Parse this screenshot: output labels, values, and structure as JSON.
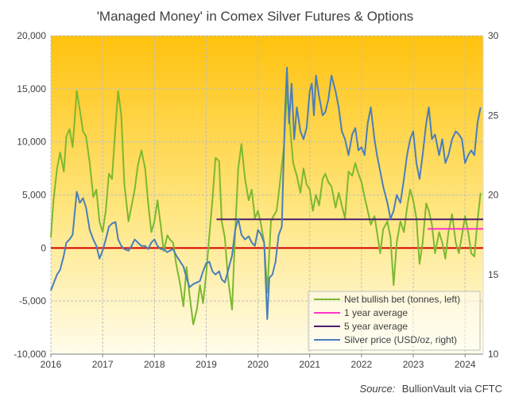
{
  "chart_data": {
    "type": "line",
    "title": "'Managed Money' in Comex Silver Futures & Options",
    "source_label": "Source:",
    "source_text": "BullionVault via CFTC",
    "x_ticks": [
      "2016",
      "2017",
      "2018",
      "2019",
      "2020",
      "2021",
      "2022",
      "2023",
      "2024"
    ],
    "x_range": [
      2016.0,
      2024.35
    ],
    "y_left": {
      "ticks": [
        "20,000",
        "15,000",
        "10,000",
        "5,000",
        "0",
        "-5,000",
        "-10,000"
      ],
      "range": [
        -10000,
        20000
      ]
    },
    "y_right": {
      "ticks": [
        "30",
        "25",
        "20",
        "15",
        "10"
      ],
      "range": [
        10,
        30
      ]
    },
    "grid": true,
    "legend_position": "bottom-right",
    "colors": {
      "net": "#7cb82f",
      "avg1": "#ff33cc",
      "avg5": "#4b1e6e",
      "price": "#4a7ebb",
      "zero": "#d40000",
      "grid": "#bfbfbf"
    },
    "series": [
      {
        "name": "Net bullish bet (tonnes, left)",
        "axis": "left",
        "x": [
          2016.0,
          2016.05,
          2016.12,
          2016.18,
          2016.25,
          2016.3,
          2016.36,
          2016.42,
          2016.5,
          2016.56,
          2016.62,
          2016.68,
          2016.75,
          2016.82,
          2016.88,
          2016.94,
          2017.0,
          2017.06,
          2017.12,
          2017.18,
          2017.25,
          2017.3,
          2017.36,
          2017.42,
          2017.5,
          2017.56,
          2017.62,
          2017.68,
          2017.75,
          2017.82,
          2017.88,
          2017.94,
          2018.0,
          2018.06,
          2018.12,
          2018.18,
          2018.25,
          2018.3,
          2018.36,
          2018.42,
          2018.5,
          2018.56,
          2018.62,
          2018.68,
          2018.75,
          2018.82,
          2018.88,
          2018.94,
          2019.0,
          2019.06,
          2019.12,
          2019.18,
          2019.25,
          2019.3,
          2019.36,
          2019.42,
          2019.5,
          2019.56,
          2019.62,
          2019.68,
          2019.75,
          2019.82,
          2019.88,
          2019.94,
          2020.0,
          2020.06,
          2020.12,
          2020.18,
          2020.25,
          2020.3,
          2020.36,
          2020.42,
          2020.5,
          2020.56,
          2020.62,
          2020.68,
          2020.75,
          2020.82,
          2020.88,
          2020.94,
          2021.0,
          2021.06,
          2021.12,
          2021.18,
          2021.25,
          2021.3,
          2021.36,
          2021.42,
          2021.5,
          2021.56,
          2021.62,
          2021.68,
          2021.75,
          2021.82,
          2021.88,
          2021.94,
          2022.0,
          2022.06,
          2022.12,
          2022.18,
          2022.25,
          2022.3,
          2022.36,
          2022.42,
          2022.5,
          2022.56,
          2022.62,
          2022.68,
          2022.75,
          2022.82,
          2022.88,
          2022.94,
          2023.0,
          2023.06,
          2023.12,
          2023.18,
          2023.25,
          2023.3,
          2023.36,
          2023.42,
          2023.5,
          2023.56,
          2023.62,
          2023.68,
          2023.75,
          2023.82,
          2023.88,
          2023.94,
          2024.0,
          2024.06,
          2024.12,
          2024.18,
          2024.24,
          2024.3
        ],
        "values": [
          1000,
          4500,
          7500,
          9000,
          7200,
          10500,
          11200,
          9500,
          14800,
          13000,
          11000,
          10500,
          8000,
          4800,
          5500,
          2500,
          1500,
          3500,
          7000,
          6500,
          11500,
          14800,
          12500,
          6000,
          2500,
          4000,
          5500,
          7800,
          9200,
          7500,
          4200,
          1500,
          2500,
          4500,
          2200,
          -300,
          1200,
          800,
          500,
          -1500,
          -3500,
          -5500,
          -1800,
          -4500,
          -7200,
          -5800,
          -3500,
          -5200,
          -2500,
          1200,
          4500,
          8500,
          8200,
          2500,
          1000,
          -2800,
          -5800,
          1500,
          7500,
          9800,
          6500,
          4500,
          5500,
          2800,
          3500,
          2200,
          500,
          -4200,
          2500,
          3000,
          3500,
          6000,
          9500,
          14800,
          11500,
          8000,
          6800,
          5200,
          7500,
          6000,
          5500,
          3500,
          5000,
          4000,
          6500,
          7000,
          6200,
          5800,
          3800,
          5200,
          4000,
          2800,
          7200,
          6800,
          8000,
          7000,
          6200,
          4800,
          3500,
          2200,
          3000,
          1500,
          -500,
          1800,
          2500,
          1000,
          -3500,
          500,
          2500,
          1500,
          3800,
          5500,
          4500,
          2800,
          -1500,
          500,
          4200,
          3500,
          2200,
          -500,
          1500,
          500,
          -1000,
          1500,
          3200,
          500,
          -500,
          1200,
          3000,
          1500,
          -500,
          -800,
          2500,
          5200
        ]
      },
      {
        "name": "1 year average",
        "axis": "left",
        "x": [
          2023.28,
          2024.35
        ],
        "values": [
          1800,
          1800
        ]
      },
      {
        "name": "5 year average",
        "axis": "left",
        "x": [
          2019.2,
          2024.35
        ],
        "values": [
          2700,
          2700
        ]
      },
      {
        "name": "Silver price (USD/oz, right)",
        "axis": "right",
        "x": [
          2016.0,
          2016.06,
          2016.12,
          2016.18,
          2016.25,
          2016.3,
          2016.36,
          2016.42,
          2016.5,
          2016.56,
          2016.62,
          2016.68,
          2016.75,
          2016.82,
          2016.88,
          2016.94,
          2017.0,
          2017.06,
          2017.12,
          2017.18,
          2017.25,
          2017.3,
          2017.36,
          2017.42,
          2017.5,
          2017.56,
          2017.62,
          2017.68,
          2017.75,
          2017.82,
          2017.88,
          2017.94,
          2018.0,
          2018.06,
          2018.12,
          2018.18,
          2018.25,
          2018.3,
          2018.36,
          2018.42,
          2018.5,
          2018.56,
          2018.62,
          2018.68,
          2018.75,
          2018.82,
          2018.88,
          2018.94,
          2019.0,
          2019.06,
          2019.12,
          2019.18,
          2019.25,
          2019.3,
          2019.36,
          2019.42,
          2019.5,
          2019.56,
          2019.62,
          2019.68,
          2019.75,
          2019.82,
          2019.88,
          2019.94,
          2020.0,
          2020.06,
          2020.12,
          2020.18,
          2020.22,
          2020.28,
          2020.34,
          2020.4,
          2020.46,
          2020.52,
          2020.56,
          2020.6,
          2020.65,
          2020.7,
          2020.75,
          2020.82,
          2020.88,
          2020.94,
          2021.0,
          2021.04,
          2021.08,
          2021.12,
          2021.18,
          2021.25,
          2021.3,
          2021.36,
          2021.42,
          2021.5,
          2021.56,
          2021.62,
          2021.68,
          2021.75,
          2021.82,
          2021.88,
          2021.94,
          2022.0,
          2022.06,
          2022.12,
          2022.18,
          2022.25,
          2022.3,
          2022.36,
          2022.42,
          2022.5,
          2022.56,
          2022.62,
          2022.68,
          2022.75,
          2022.82,
          2022.88,
          2022.94,
          2023.0,
          2023.06,
          2023.12,
          2023.18,
          2023.25,
          2023.3,
          2023.36,
          2023.42,
          2023.5,
          2023.56,
          2023.62,
          2023.68,
          2023.75,
          2023.82,
          2023.88,
          2023.94,
          2024.0,
          2024.06,
          2024.12,
          2024.18,
          2024.24,
          2024.3
        ],
        "values": [
          14.0,
          14.5,
          15.0,
          15.3,
          16.2,
          17.0,
          17.2,
          17.5,
          20.2,
          19.5,
          19.8,
          19.2,
          17.8,
          17.2,
          16.8,
          16.0,
          16.5,
          17.2,
          18.0,
          18.2,
          18.3,
          17.2,
          16.8,
          16.6,
          16.5,
          16.8,
          17.2,
          17.0,
          16.8,
          16.8,
          16.6,
          17.0,
          17.2,
          16.8,
          16.6,
          16.6,
          16.4,
          16.5,
          16.6,
          16.2,
          15.8,
          15.5,
          14.8,
          14.2,
          14.4,
          14.5,
          14.6,
          15.2,
          15.7,
          15.8,
          15.2,
          15.0,
          15.2,
          14.7,
          14.5,
          15.2,
          16.2,
          17.8,
          18.5,
          17.5,
          17.2,
          17.4,
          17.0,
          16.8,
          17.8,
          17.5,
          17.0,
          12.2,
          14.8,
          15.0,
          15.8,
          17.5,
          18.0,
          25.0,
          28.0,
          24.5,
          27.0,
          23.5,
          25.5,
          24.0,
          23.5,
          24.2,
          26.5,
          27.0,
          25.0,
          27.5,
          26.2,
          25.0,
          25.2,
          26.0,
          27.5,
          26.5,
          25.5,
          24.0,
          23.5,
          22.5,
          23.8,
          24.2,
          22.8,
          23.0,
          22.5,
          24.5,
          25.5,
          23.5,
          22.5,
          21.5,
          20.5,
          19.5,
          18.5,
          19.0,
          20.0,
          19.5,
          21.0,
          22.5,
          23.5,
          24.0,
          22.0,
          21.0,
          22.5,
          24.5,
          25.5,
          23.5,
          23.8,
          22.5,
          23.5,
          22.0,
          22.5,
          23.5,
          24.0,
          23.8,
          23.5,
          22.0,
          22.5,
          22.8,
          22.5,
          24.5,
          25.5
        ]
      }
    ]
  }
}
